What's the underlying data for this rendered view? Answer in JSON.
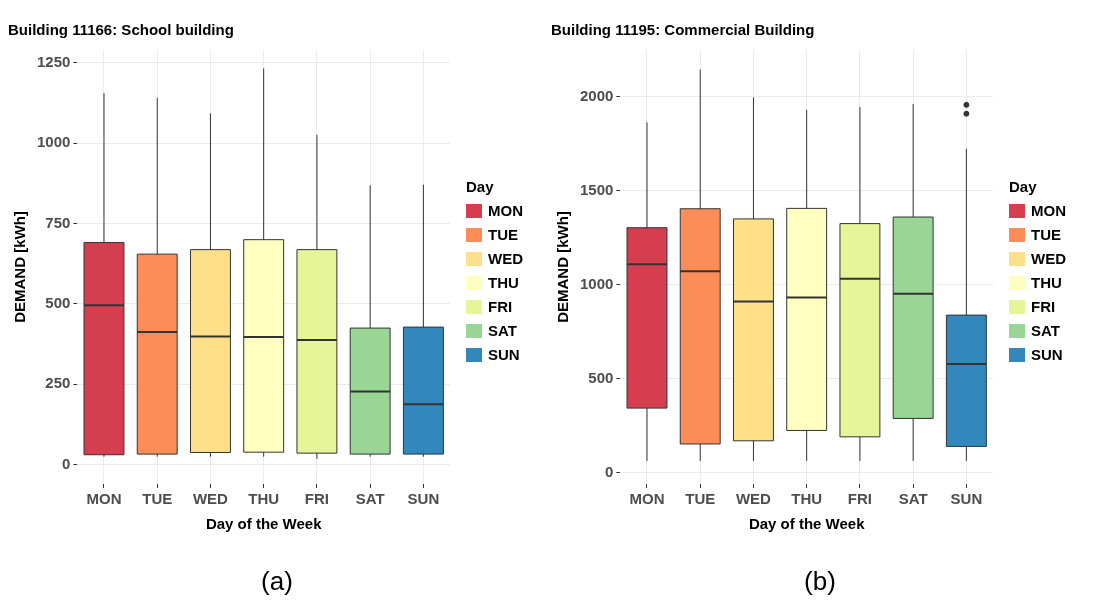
{
  "chart_data": [
    {
      "type": "box",
      "title": "Building 11166: School building",
      "xlabel": "Day of the Week",
      "ylabel": "DEMAND [kWh]",
      "legend_title": "Day",
      "legend": "right",
      "grid": true,
      "categories": [
        "MON",
        "TUE",
        "WED",
        "THU",
        "FRI",
        "SAT",
        "SUN"
      ],
      "series": [
        {
          "name": "MON",
          "color": "#d53e4f",
          "boxes": [
            {
              "low": 25,
              "q1": 31,
              "median": 496,
              "q3": 691,
              "high": 1156
            },
            null,
            null,
            null,
            null,
            null,
            null
          ]
        },
        {
          "name": "TUE",
          "color": "#fc8d59",
          "boxes": [
            null,
            {
              "low": 25,
              "q1": 33,
              "median": 413,
              "q3": 655,
              "high": 1141
            },
            null,
            null,
            null,
            null,
            null
          ]
        },
        {
          "name": "WED",
          "color": "#fee08b",
          "boxes": [
            null,
            null,
            {
              "low": 25,
              "q1": 38,
              "median": 399,
              "q3": 669,
              "high": 1093
            },
            null,
            null,
            null,
            null
          ]
        },
        {
          "name": "THU",
          "color": "#ffffbf",
          "boxes": [
            null,
            null,
            null,
            {
              "low": 25,
              "q1": 39,
              "median": 397,
              "q3": 700,
              "high": 1233
            },
            null,
            null,
            null
          ]
        },
        {
          "name": "FRI",
          "color": "#e6f598",
          "boxes": [
            null,
            null,
            null,
            null,
            {
              "low": 18,
              "q1": 36,
              "median": 388,
              "q3": 669,
              "high": 1026
            },
            null,
            null
          ]
        },
        {
          "name": "SAT",
          "color": "#99d594",
          "boxes": [
            null,
            null,
            null,
            null,
            null,
            {
              "low": 25,
              "q1": 33,
              "median": 228,
              "q3": 425,
              "high": 869
            },
            null
          ]
        },
        {
          "name": "SUN",
          "color": "#3288bd",
          "boxes": [
            null,
            null,
            null,
            null,
            null,
            null,
            {
              "low": 25,
              "q1": 33,
              "median": 188,
              "q3": 428,
              "high": 871
            }
          ]
        }
      ],
      "ylim": [
        -60,
        1290
      ],
      "yticks": [
        0,
        250,
        500,
        750,
        1000,
        1250
      ],
      "annotations": [
        "(a)"
      ]
    },
    {
      "type": "box",
      "title": "Building 11195: Commercial Building",
      "xlabel": "Day of the Week",
      "ylabel": "DEMAND [kWh]",
      "legend_title": "Day",
      "legend": "right",
      "grid": true,
      "categories": [
        "MON",
        "TUE",
        "WED",
        "THU",
        "FRI",
        "SAT",
        "SUN"
      ],
      "series": [
        {
          "name": "MON",
          "color": "#d53e4f",
          "boxes": [
            {
              "low": 63,
              "q1": 344,
              "median": 1109,
              "q3": 1304,
              "high": 1865
            },
            null,
            null,
            null,
            null,
            null,
            null
          ]
        },
        {
          "name": "TUE",
          "color": "#fc8d59",
          "boxes": [
            null,
            {
              "low": 63,
              "q1": 153,
              "median": 1072,
              "q3": 1405,
              "high": 2146
            },
            null,
            null,
            null,
            null,
            null
          ]
        },
        {
          "name": "WED",
          "color": "#fee08b",
          "boxes": [
            null,
            null,
            {
              "low": 63,
              "q1": 170,
              "median": 912,
              "q3": 1351,
              "high": 1998
            },
            null,
            null,
            null,
            null
          ]
        },
        {
          "name": "THU",
          "color": "#ffffbf",
          "boxes": [
            null,
            null,
            null,
            {
              "low": 63,
              "q1": 225,
              "median": 932,
              "q3": 1407,
              "high": 1932
            },
            null,
            null,
            null
          ]
        },
        {
          "name": "FRI",
          "color": "#e6f598",
          "boxes": [
            null,
            null,
            null,
            null,
            {
              "low": 63,
              "q1": 191,
              "median": 1032,
              "q3": 1326,
              "high": 1946
            },
            null,
            null
          ]
        },
        {
          "name": "SAT",
          "color": "#99d594",
          "boxes": [
            null,
            null,
            null,
            null,
            null,
            {
              "low": 63,
              "q1": 289,
              "median": 953,
              "q3": 1361,
              "high": 1963
            },
            null
          ]
        },
        {
          "name": "SUN",
          "color": "#3288bd",
          "boxes": [
            null,
            null,
            null,
            null,
            null,
            null,
            {
              "low": 63,
              "q1": 140,
              "median": 579,
              "q3": 839,
              "high": 1725,
              "outliers": [
                1958,
                1911
              ]
            }
          ]
        }
      ],
      "ylim": [
        -60,
        2250
      ],
      "yticks": [
        0,
        500,
        1000,
        1500,
        2000
      ],
      "annotations": [
        "(b)"
      ]
    }
  ]
}
